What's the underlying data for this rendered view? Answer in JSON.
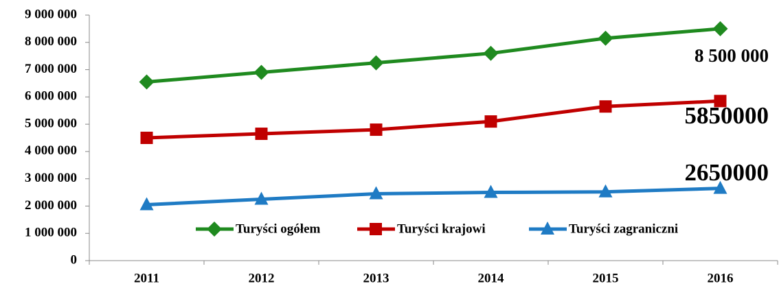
{
  "chart_data": {
    "type": "line",
    "categories": [
      "2011",
      "2012",
      "2013",
      "2014",
      "2015",
      "2016"
    ],
    "series": [
      {
        "name": "Turyści ogółem",
        "color": "#1f8a1f",
        "marker": "diamond",
        "values": [
          6550000,
          6900000,
          7250000,
          7600000,
          8150000,
          8500000
        ],
        "value_labels": [
          null,
          null,
          null,
          null,
          null,
          "8 500 000"
        ]
      },
      {
        "name": "Turyści krajowi",
        "color": "#c00000",
        "marker": "square",
        "values": [
          4500000,
          4650000,
          4800000,
          5100000,
          5650000,
          5850000
        ],
        "value_labels": [
          null,
          null,
          null,
          null,
          null,
          "5850000"
        ]
      },
      {
        "name": "Turyści zagraniczni",
        "color": "#1f7bc4",
        "marker": "triangle",
        "values": [
          2050000,
          2250000,
          2450000,
          2500000,
          2520000,
          2650000
        ],
        "value_labels": [
          null,
          null,
          null,
          null,
          null,
          "2650000"
        ]
      }
    ],
    "ylim": [
      0,
      9000000
    ],
    "yticks": [
      0,
      {
        "value": 1000000,
        "label": "1 000 000"
      },
      {
        "value": 2000000,
        "label": "2 000 000"
      },
      {
        "value": 3000000,
        "label": "3 000 000"
      },
      {
        "value": 4000000,
        "label": "4 000 000"
      },
      {
        "value": 5000000,
        "label": "5 000 000"
      },
      {
        "value": 6000000,
        "label": "6 000 000"
      },
      {
        "value": 7000000,
        "label": "7 000 000"
      },
      {
        "value": 8000000,
        "label": "8 000 000"
      },
      {
        "value": 9000000,
        "label": "9 000 000"
      }
    ],
    "grid": false,
    "legend": "bottom"
  }
}
